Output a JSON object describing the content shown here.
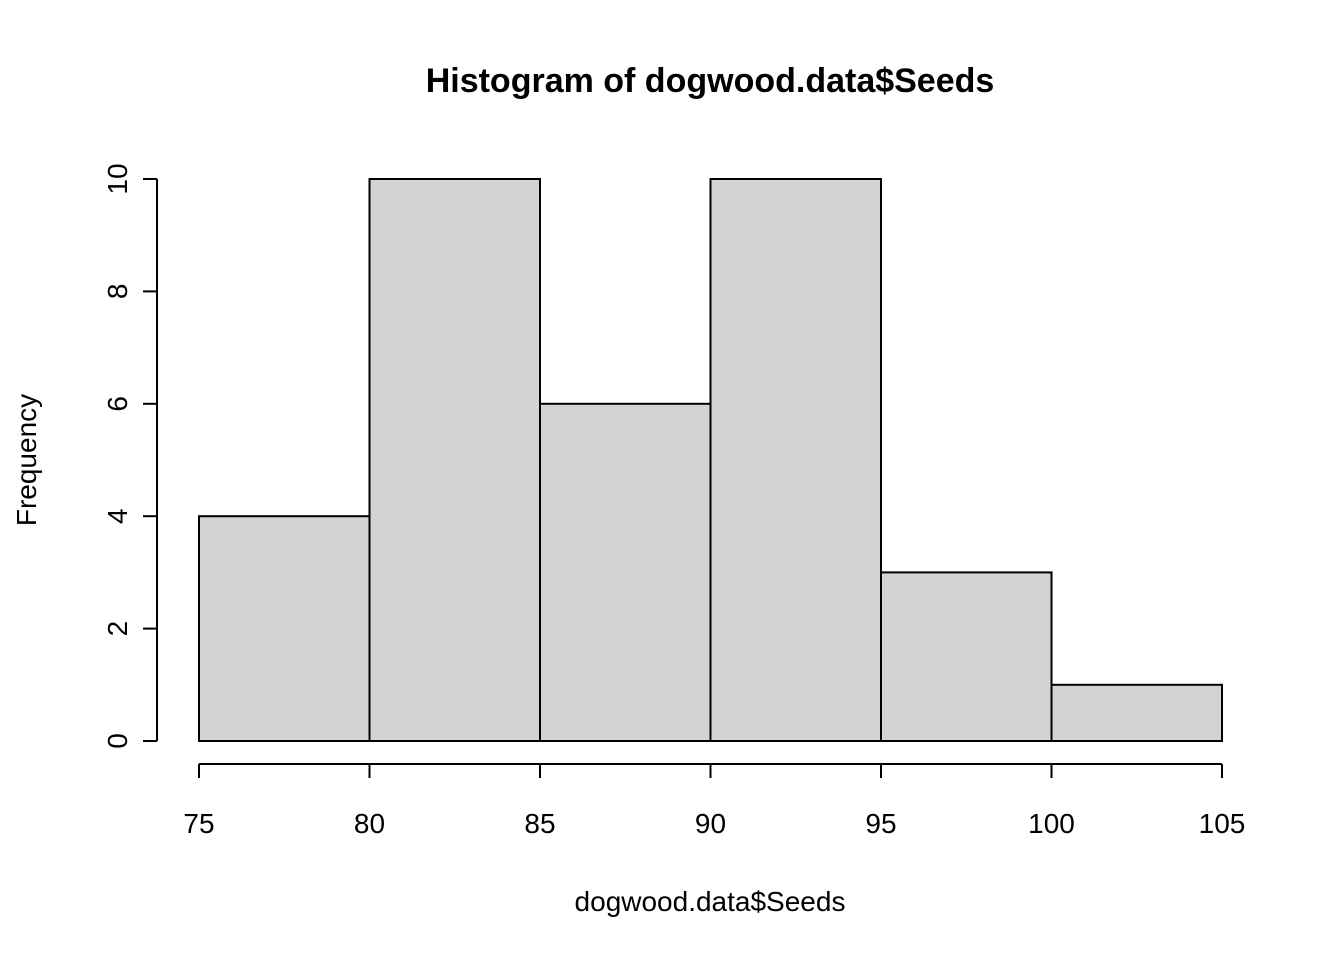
{
  "chart_data": {
    "type": "bar",
    "title": "Histogram of dogwood.data$Seeds",
    "xlabel": "dogwood.data$Seeds",
    "ylabel": "Frequency",
    "bins": [
      {
        "from": 75,
        "to": 80,
        "value": 4
      },
      {
        "from": 80,
        "to": 85,
        "value": 10
      },
      {
        "from": 85,
        "to": 90,
        "value": 6
      },
      {
        "from": 90,
        "to": 95,
        "value": 10
      },
      {
        "from": 95,
        "to": 100,
        "value": 3
      },
      {
        "from": 100,
        "to": 105,
        "value": 1
      }
    ],
    "xlim": [
      75,
      105
    ],
    "ylim": [
      0,
      10
    ],
    "x_ticks": [
      "75",
      "80",
      "85",
      "90",
      "95",
      "100",
      "105"
    ],
    "y_ticks": [
      "0",
      "2",
      "4",
      "6",
      "8",
      "10"
    ],
    "grid": false,
    "legend": "none",
    "colors": {
      "bar_fill": "#d3d3d3",
      "bar_stroke": "#000000",
      "axis": "#000000"
    }
  }
}
